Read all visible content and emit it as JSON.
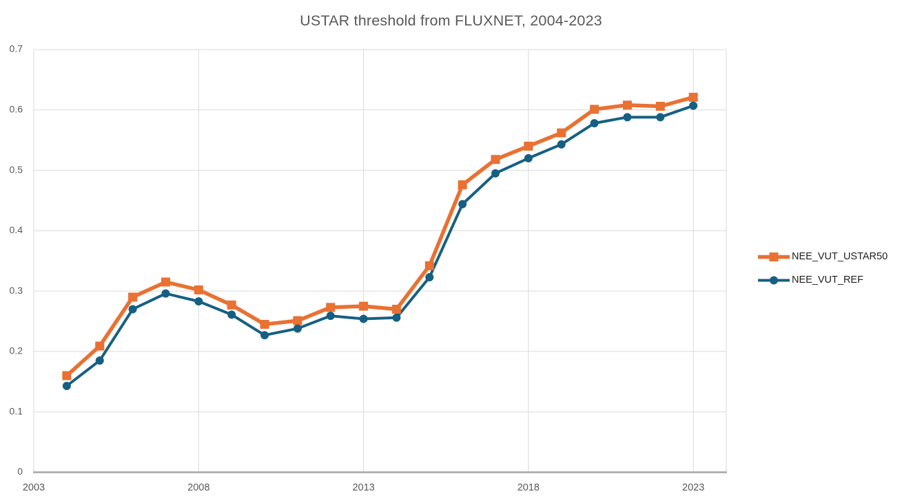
{
  "title": "USTAR threshold from FLUXNET, 2004-2023",
  "chart_data": {
    "type": "line",
    "title": "USTAR threshold from FLUXNET, 2004-2023",
    "xlabel": "",
    "ylabel": "",
    "xlim": [
      2003,
      2024
    ],
    "ylim": [
      0,
      0.7
    ],
    "x_ticks": [
      2003,
      2008,
      2013,
      2018,
      2023
    ],
    "x_tick_labels": [
      "2003",
      "2008",
      "2013",
      "2018",
      "2023"
    ],
    "y_ticks": [
      0,
      0.1,
      0.2,
      0.3,
      0.4,
      0.5,
      0.6,
      0.7
    ],
    "y_tick_labels": [
      "0",
      "0.1",
      "0.2",
      "0.3",
      "0.4",
      "0.5",
      "0.6",
      "0.7"
    ],
    "grid": true,
    "legend_position": "right",
    "x": [
      2004,
      2005,
      2006,
      2007,
      2008,
      2009,
      2010,
      2011,
      2012,
      2013,
      2014,
      2015,
      2016,
      2017,
      2018,
      2019,
      2020,
      2021,
      2022,
      2023
    ],
    "series": [
      {
        "name": "NEE_VUT_USTAR50",
        "color": "#E97132",
        "marker": "square",
        "line_width": 5.5,
        "marker_size": 13,
        "values": [
          0.16,
          0.209,
          0.29,
          0.315,
          0.302,
          0.277,
          0.245,
          0.251,
          0.273,
          0.275,
          0.27,
          0.342,
          0.476,
          0.518,
          0.54,
          0.562,
          0.601,
          0.608,
          0.606,
          0.621
        ]
      },
      {
        "name": "NEE_VUT_REF",
        "color": "#156082",
        "marker": "circle",
        "line_width": 4,
        "marker_size": 12,
        "values": [
          0.143,
          0.185,
          0.27,
          0.296,
          0.283,
          0.261,
          0.227,
          0.238,
          0.259,
          0.254,
          0.256,
          0.323,
          0.444,
          0.495,
          0.52,
          0.543,
          0.578,
          0.588,
          0.588,
          0.607
        ]
      }
    ]
  },
  "colors": {
    "series_1": "#E97132",
    "series_2": "#156082",
    "gridline": "#D9D9D9",
    "axis_line": "#A6A6A6",
    "tick_label": "#595959",
    "title_text": "#595959",
    "legend_text": "#1f1f1f",
    "background": "#ffffff"
  }
}
